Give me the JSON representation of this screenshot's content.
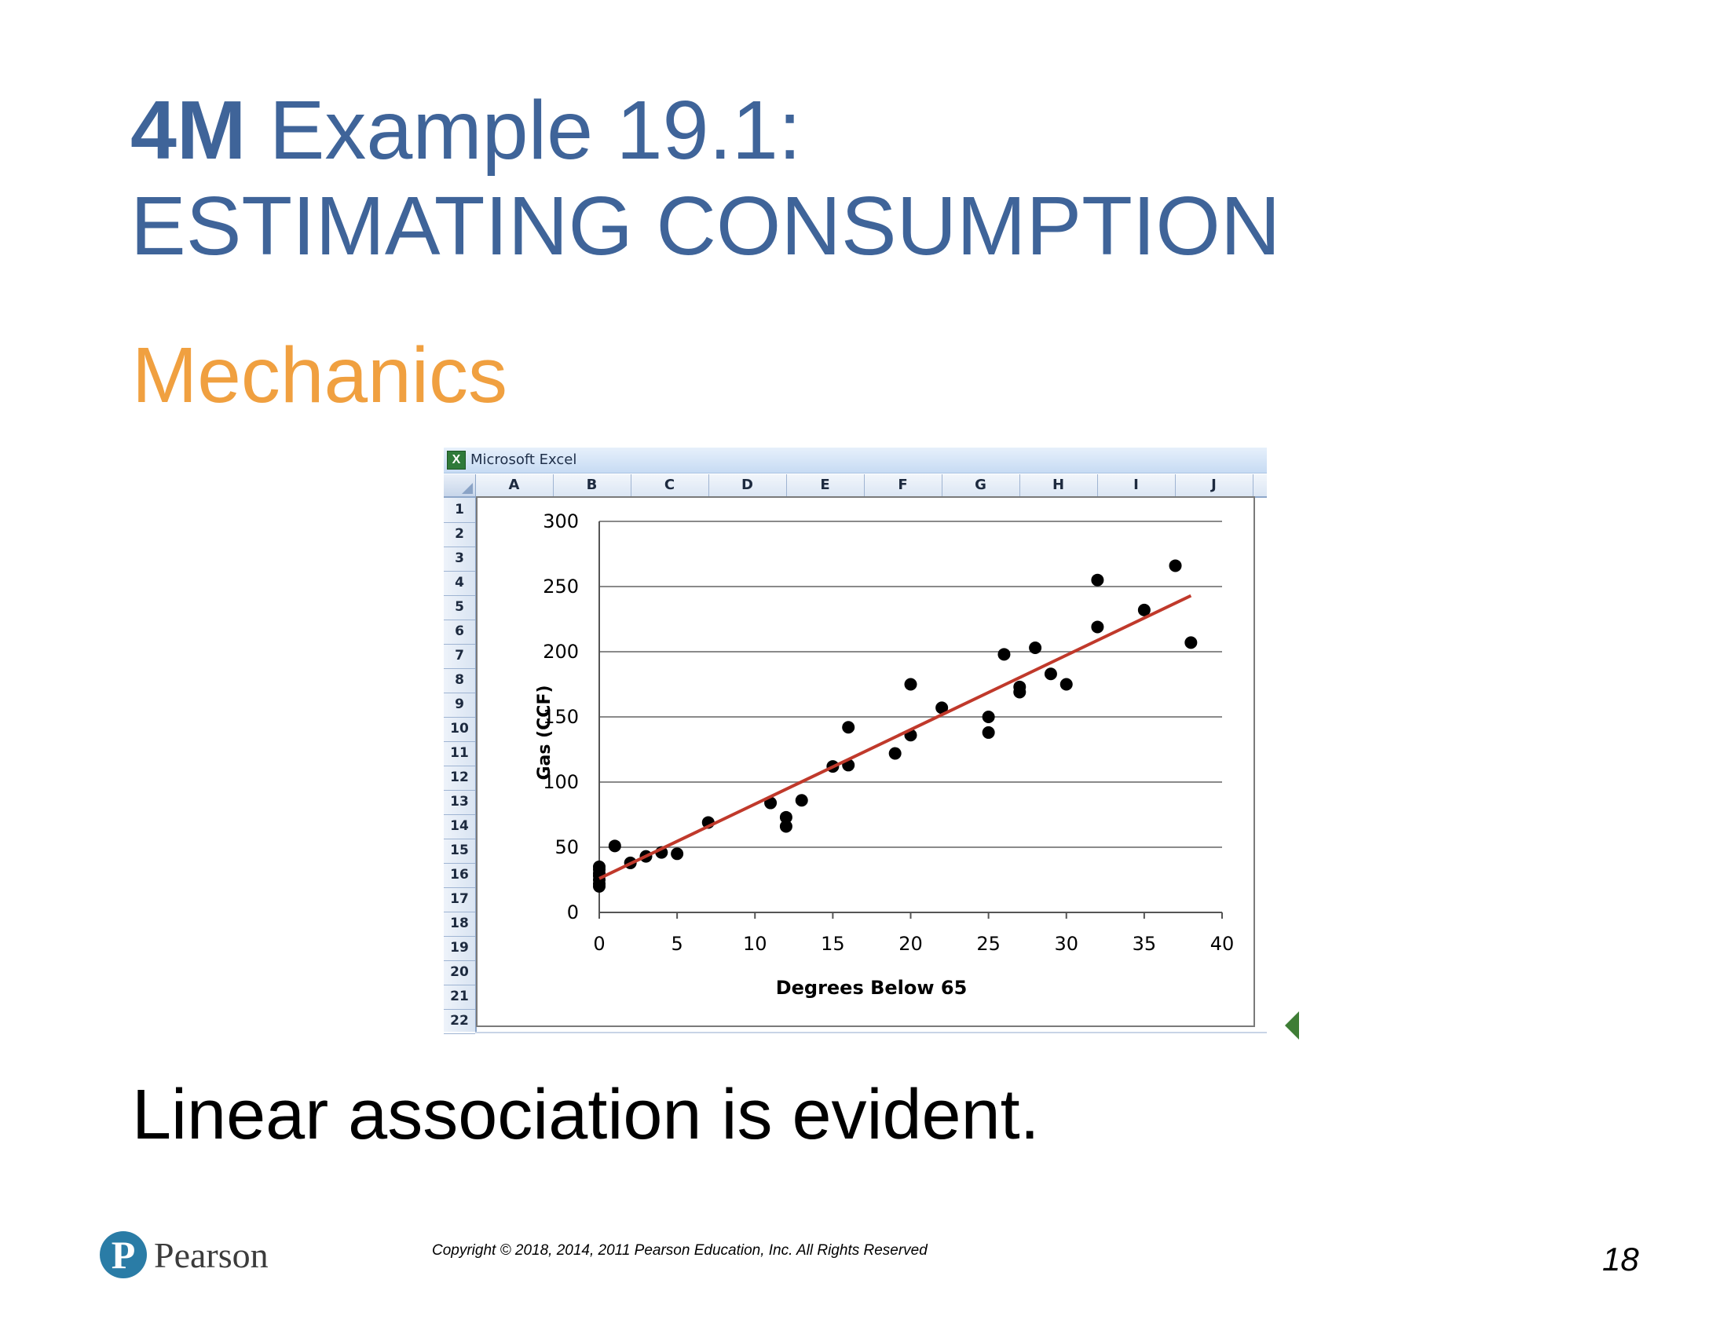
{
  "slide": {
    "title_bold": "4M",
    "title_rest": " Example 19.1:",
    "title_line2": "ESTIMATING CONSUMPTION",
    "subtitle": "Mechanics",
    "caption": "Linear association is evident.",
    "copyright": "Copyright © 2018, 2014, 2011 Pearson Education, Inc. All Rights Reserved",
    "page_number": "18",
    "logo_letter": "P",
    "logo_name": "Pearson",
    "colors": {
      "title": "#3f6499",
      "subtitle": "#f0a040",
      "trend_line": "#c0392b",
      "logo": "#2a7ca6"
    }
  },
  "excel": {
    "window_title": "Microsoft Excel",
    "icon_label": "X",
    "columns": [
      "A",
      "B",
      "C",
      "D",
      "E",
      "F",
      "G",
      "H",
      "I",
      "J"
    ],
    "rows": [
      "1",
      "2",
      "3",
      "4",
      "5",
      "6",
      "7",
      "8",
      "9",
      "10",
      "11",
      "12",
      "13",
      "14",
      "15",
      "16",
      "17",
      "18",
      "19",
      "20",
      "21",
      "22"
    ]
  },
  "chart_data": {
    "type": "scatter",
    "xlabel": "Degrees Below 65",
    "ylabel": "Gas (CCF)",
    "xlim": [
      0,
      40
    ],
    "ylim": [
      0,
      300
    ],
    "xticks": [
      0,
      5,
      10,
      15,
      20,
      25,
      30,
      35,
      40
    ],
    "yticks": [
      0,
      50,
      100,
      150,
      200,
      250,
      300
    ],
    "grid": "horizontal",
    "points": [
      {
        "x": 0,
        "y": 20
      },
      {
        "x": 0,
        "y": 22
      },
      {
        "x": 0,
        "y": 25
      },
      {
        "x": 0,
        "y": 28
      },
      {
        "x": 0,
        "y": 30
      },
      {
        "x": 0,
        "y": 33
      },
      {
        "x": 0,
        "y": 35
      },
      {
        "x": 1,
        "y": 51
      },
      {
        "x": 2,
        "y": 38
      },
      {
        "x": 3,
        "y": 43
      },
      {
        "x": 4,
        "y": 46
      },
      {
        "x": 5,
        "y": 45
      },
      {
        "x": 7,
        "y": 69
      },
      {
        "x": 11,
        "y": 84
      },
      {
        "x": 12,
        "y": 73
      },
      {
        "x": 12,
        "y": 66
      },
      {
        "x": 13,
        "y": 86
      },
      {
        "x": 15,
        "y": 112
      },
      {
        "x": 16,
        "y": 113
      },
      {
        "x": 16,
        "y": 142
      },
      {
        "x": 19,
        "y": 122
      },
      {
        "x": 20,
        "y": 136
      },
      {
        "x": 20,
        "y": 175
      },
      {
        "x": 22,
        "y": 157
      },
      {
        "x": 25,
        "y": 150
      },
      {
        "x": 25,
        "y": 138
      },
      {
        "x": 26,
        "y": 198
      },
      {
        "x": 27,
        "y": 173
      },
      {
        "x": 27,
        "y": 169
      },
      {
        "x": 28,
        "y": 203
      },
      {
        "x": 29,
        "y": 183
      },
      {
        "x": 30,
        "y": 175
      },
      {
        "x": 32,
        "y": 255
      },
      {
        "x": 32,
        "y": 219
      },
      {
        "x": 35,
        "y": 232
      },
      {
        "x": 37,
        "y": 266
      },
      {
        "x": 38,
        "y": 207
      }
    ],
    "trend_line": {
      "x": [
        0,
        38
      ],
      "y": [
        26,
        243
      ]
    }
  }
}
